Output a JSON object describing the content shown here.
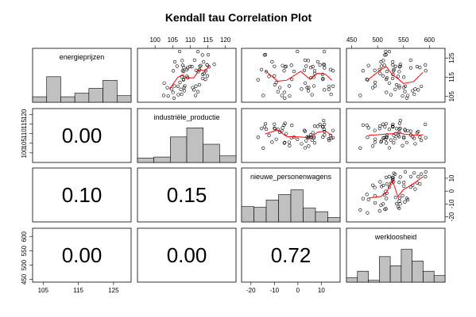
{
  "chart_data": {
    "type": "scatter",
    "title": "Kendall tau Correlation Plot",
    "variables": [
      {
        "name": "energieprijzen",
        "ticks": [
          105,
          115,
          125
        ],
        "range": [
          102,
          130
        ]
      },
      {
        "name": "industriële_productie",
        "ticks": [
          100,
          105,
          110,
          115,
          120
        ],
        "range": [
          95,
          123
        ]
      },
      {
        "name": "nieuwe_personenwagens",
        "ticks": [
          -20,
          -10,
          0,
          10
        ],
        "range": [
          -24,
          18
        ]
      },
      {
        "name": "werkloosheid",
        "ticks": [
          450,
          500,
          550,
          600
        ],
        "range": [
          440,
          630
        ]
      }
    ],
    "histograms": [
      [
        0.15,
        0.7,
        0.15,
        0.25,
        0.38,
        0.6,
        0.18
      ],
      [
        0.12,
        0.15,
        0.7,
        0.95,
        0.5,
        0.18
      ],
      [
        0.42,
        0.4,
        0.6,
        0.75,
        0.88,
        0.38,
        0.28,
        0.12
      ],
      [
        0.12,
        0.3,
        0.05,
        0.7,
        0.45,
        0.9,
        0.58,
        0.3,
        0.18
      ]
    ],
    "correlations": [
      {
        "row": 2,
        "col": 1,
        "value": "0.00"
      },
      {
        "row": 3,
        "col": 1,
        "value": "0.10"
      },
      {
        "row": 3,
        "col": 2,
        "value": "0.15"
      },
      {
        "row": 4,
        "col": 1,
        "value": "0.00"
      },
      {
        "row": 4,
        "col": 2,
        "value": "0.00"
      },
      {
        "row": 4,
        "col": 3,
        "value": "0.72"
      }
    ],
    "smoother_color": "#ff0000",
    "bar_color": "#c0c0c0"
  }
}
